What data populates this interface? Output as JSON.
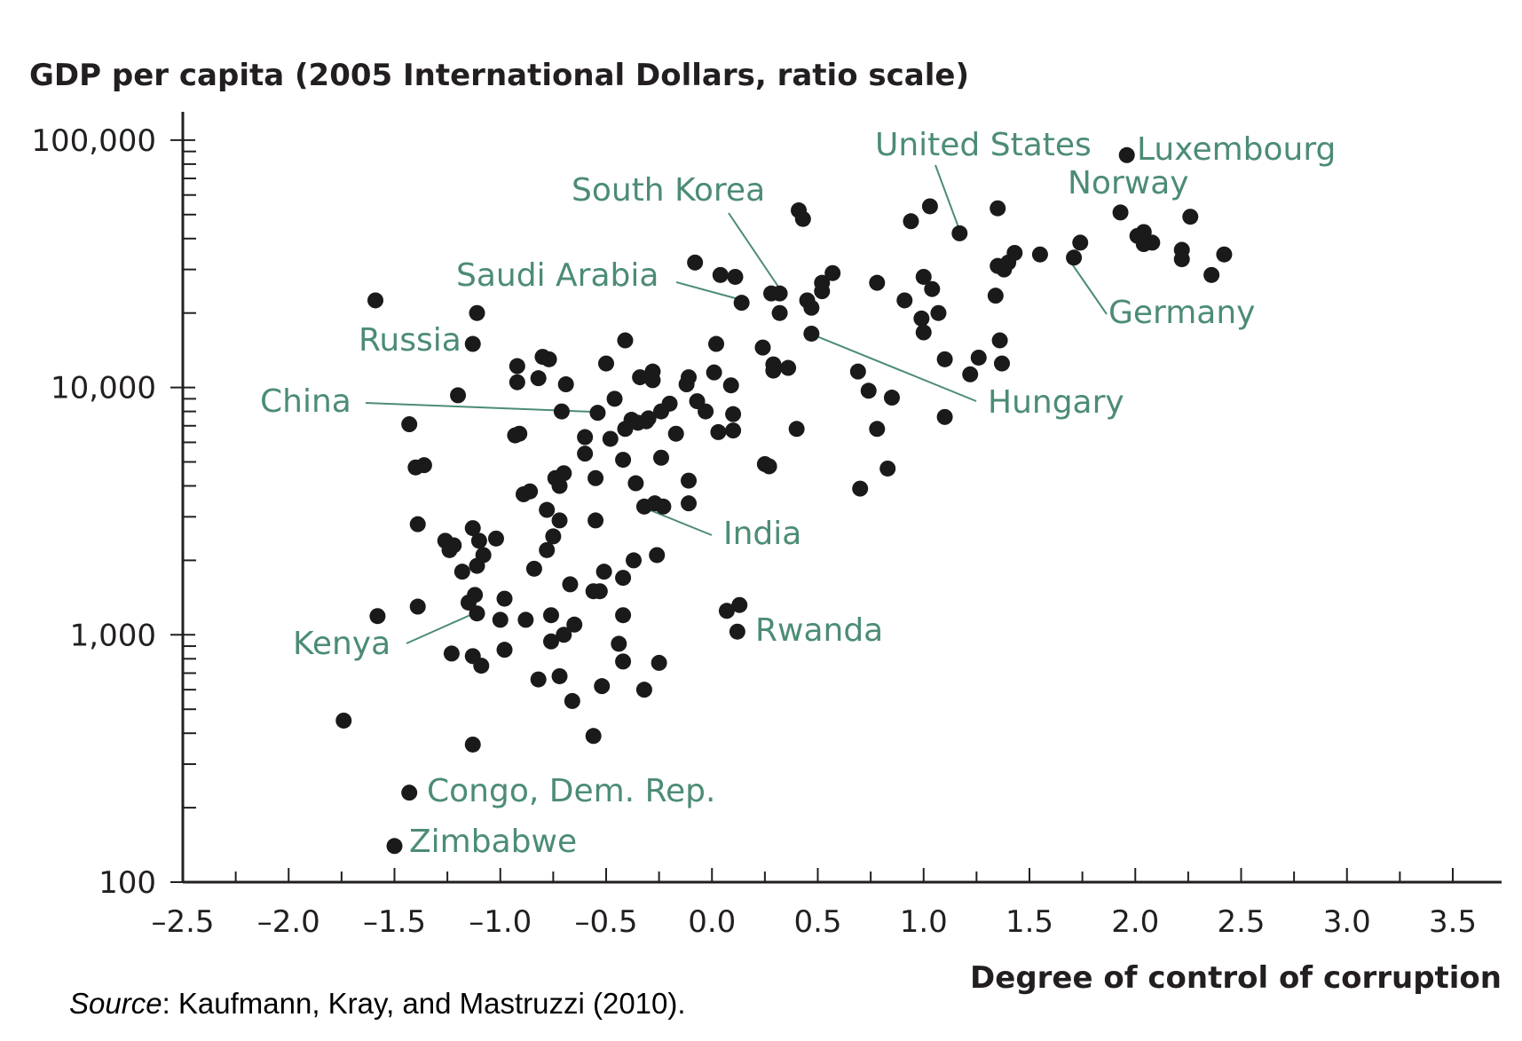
{
  "chart_data": {
    "type": "scatter",
    "title": "",
    "ylabel": "GDP per capita (2005 International Dollars, ratio scale)",
    "xlabel": "Degree of control of corruption",
    "y_scale": "log",
    "xlim": [
      -2.5,
      3.7
    ],
    "ylim": [
      100,
      100000
    ],
    "grid": false,
    "x_ticks": [
      -2.5,
      -2.0,
      -1.5,
      -1.0,
      -0.5,
      0.0,
      0.5,
      1.0,
      1.5,
      2.0,
      2.5,
      3.0,
      3.5
    ],
    "x_tick_labels": [
      "–2.5",
      "–2.0",
      "–1.5",
      "–1.0",
      "–0.5",
      "0.0",
      "0.5",
      "1.0",
      "1.5",
      "2.0",
      "2.5",
      "3.0",
      "3.5"
    ],
    "y_ticks": [
      100,
      1000,
      10000,
      100000
    ],
    "y_tick_labels": [
      "100",
      "1,000",
      "10,000",
      "100,000"
    ],
    "points": [
      [
        -1.59,
        22500
      ],
      [
        -1.11,
        20000
      ],
      [
        -1.13,
        15000
      ],
      [
        -1.2,
        9300
      ],
      [
        -1.43,
        7100
      ],
      [
        -1.4,
        4750
      ],
      [
        -1.36,
        4850
      ],
      [
        -1.39,
        2800
      ],
      [
        -1.26,
        2400
      ],
      [
        -1.24,
        2200
      ],
      [
        -1.22,
        2300
      ],
      [
        -1.13,
        2700
      ],
      [
        -1.1,
        2400
      ],
      [
        -1.08,
        2100
      ],
      [
        -1.11,
        1900
      ],
      [
        -1.18,
        1800
      ],
      [
        -1.02,
        2450
      ],
      [
        -0.98,
        1400
      ],
      [
        -1.15,
        1350
      ],
      [
        -1.12,
        1450
      ],
      [
        -1.11,
        1220
      ],
      [
        -1.0,
        1150
      ],
      [
        -0.88,
        1150
      ],
      [
        -1.58,
        1190
      ],
      [
        -1.39,
        1300
      ],
      [
        -1.23,
        840
      ],
      [
        -1.13,
        820
      ],
      [
        -1.09,
        750
      ],
      [
        -0.98,
        870
      ],
      [
        -0.82,
        660
      ],
      [
        -0.72,
        680
      ],
      [
        -0.66,
        540
      ],
      [
        -1.74,
        450
      ],
      [
        -1.13,
        360
      ],
      [
        -0.56,
        390
      ],
      [
        -0.92,
        12200
      ],
      [
        -0.92,
        10500
      ],
      [
        -0.82,
        10900
      ],
      [
        -0.8,
        13300
      ],
      [
        -0.77,
        13000
      ],
      [
        -0.69,
        10300
      ],
      [
        -0.71,
        8000
      ],
      [
        -0.93,
        6400
      ],
      [
        -0.91,
        6500
      ],
      [
        -0.89,
        3700
      ],
      [
        -0.86,
        3800
      ],
      [
        -0.78,
        3200
      ],
      [
        -0.74,
        4300
      ],
      [
        -0.72,
        4000
      ],
      [
        -0.7,
        4500
      ],
      [
        -0.72,
        2900
      ],
      [
        -0.78,
        2200
      ],
      [
        -0.75,
        2500
      ],
      [
        -0.84,
        1850
      ],
      [
        -0.67,
        1600
      ],
      [
        -0.56,
        1500
      ],
      [
        -0.53,
        1500
      ],
      [
        -0.51,
        1800
      ],
      [
        -0.76,
        1200
      ],
      [
        -0.76,
        940
      ],
      [
        -0.7,
        1000
      ],
      [
        -0.65,
        1100
      ],
      [
        -0.52,
        620
      ],
      [
        -0.42,
        780
      ],
      [
        -0.44,
        920
      ],
      [
        -0.32,
        600
      ],
      [
        -0.25,
        770
      ],
      [
        -0.5,
        12500
      ],
      [
        -0.41,
        15500
      ],
      [
        -0.34,
        11000
      ],
      [
        -0.28,
        11600
      ],
      [
        -0.28,
        10700
      ],
      [
        -0.46,
        9000
      ],
      [
        -0.54,
        7900
      ],
      [
        -0.41,
        6800
      ],
      [
        -0.38,
        7400
      ],
      [
        -0.35,
        7200
      ],
      [
        -0.3,
        7500
      ],
      [
        -0.31,
        7300
      ],
      [
        -0.2,
        8600
      ],
      [
        -0.24,
        8000
      ],
      [
        -0.17,
        6500
      ],
      [
        -0.6,
        6300
      ],
      [
        -0.6,
        5400
      ],
      [
        -0.48,
        6200
      ],
      [
        -0.42,
        5100
      ],
      [
        -0.55,
        4300
      ],
      [
        -0.36,
        4100
      ],
      [
        -0.24,
        5200
      ],
      [
        -0.11,
        4200
      ],
      [
        -0.55,
        2900
      ],
      [
        -0.32,
        3300
      ],
      [
        -0.27,
        3400
      ],
      [
        -0.23,
        3300
      ],
      [
        -0.11,
        3400
      ],
      [
        -0.37,
        2000
      ],
      [
        -0.26,
        2100
      ],
      [
        -0.42,
        1700
      ],
      [
        -0.42,
        1200
      ],
      [
        -0.11,
        11000
      ],
      [
        -0.12,
        10300
      ],
      [
        -0.07,
        8800
      ],
      [
        -0.03,
        8000
      ],
      [
        -0.08,
        32000
      ],
      [
        0.04,
        28500
      ],
      [
        0.11,
        28000
      ],
      [
        0.14,
        22000
      ],
      [
        0.28,
        24000
      ],
      [
        0.32,
        24000
      ],
      [
        0.32,
        20000
      ],
      [
        0.02,
        15000
      ],
      [
        0.01,
        11500
      ],
      [
        0.09,
        10200
      ],
      [
        0.1,
        7800
      ],
      [
        0.1,
        6700
      ],
      [
        0.03,
        6600
      ],
      [
        0.24,
        14500
      ],
      [
        0.29,
        12400
      ],
      [
        0.29,
        11700
      ],
      [
        0.36,
        12000
      ],
      [
        0.27,
        4800
      ],
      [
        0.25,
        4900
      ],
      [
        0.4,
        6800
      ],
      [
        0.41,
        52000
      ],
      [
        0.43,
        48000
      ],
      [
        0.45,
        22500
      ],
      [
        0.47,
        21000
      ],
      [
        0.52,
        24500
      ],
      [
        0.52,
        26500
      ],
      [
        0.57,
        29000
      ],
      [
        0.47,
        16500
      ],
      [
        0.07,
        1250
      ],
      [
        0.13,
        1320
      ],
      [
        0.12,
        1030
      ],
      [
        0.78,
        26500
      ],
      [
        0.69,
        11600
      ],
      [
        0.74,
        9700
      ],
      [
        0.78,
        6800
      ],
      [
        0.7,
        3900
      ],
      [
        0.83,
        4700
      ],
      [
        0.85,
        9100
      ],
      [
        0.94,
        47000
      ],
      [
        1.03,
        54000
      ],
      [
        1.17,
        42000
      ],
      [
        0.91,
        22500
      ],
      [
        0.99,
        19000
      ],
      [
        1.0,
        28000
      ],
      [
        1.04,
        25000
      ],
      [
        1.07,
        20000
      ],
      [
        1.0,
        16700
      ],
      [
        1.1,
        13000
      ],
      [
        1.26,
        13200
      ],
      [
        1.22,
        11300
      ],
      [
        1.1,
        7600
      ],
      [
        1.35,
        53000
      ],
      [
        1.35,
        31000
      ],
      [
        1.38,
        30000
      ],
      [
        1.4,
        32000
      ],
      [
        1.43,
        35000
      ],
      [
        1.55,
        34500
      ],
      [
        1.34,
        23500
      ],
      [
        1.36,
        15500
      ],
      [
        1.37,
        12500
      ],
      [
        1.71,
        33500
      ],
      [
        1.74,
        38500
      ],
      [
        1.96,
        87000
      ],
      [
        1.93,
        51000
      ],
      [
        2.01,
        41000
      ],
      [
        2.04,
        42500
      ],
      [
        2.04,
        38000
      ],
      [
        2.08,
        38500
      ],
      [
        2.22,
        36000
      ],
      [
        2.22,
        33000
      ],
      [
        2.26,
        49000
      ],
      [
        2.36,
        28500
      ],
      [
        2.42,
        34500
      ],
      [
        -1.43,
        230
      ],
      [
        -1.5,
        140
      ]
    ],
    "annotations": [
      {
        "text": "United States",
        "x": 1.17,
        "y": 42000
      },
      {
        "text": "Luxembourg",
        "x": 1.96,
        "y": 87000
      },
      {
        "text": "Norway",
        "x": 2.04,
        "y": 42500
      },
      {
        "text": "South Korea",
        "x": 0.32,
        "y": 24000
      },
      {
        "text": "Saudi Arabia",
        "x": 0.14,
        "y": 22000
      },
      {
        "text": "Russia",
        "x": -1.13,
        "y": 15000
      },
      {
        "text": "China",
        "x": -0.54,
        "y": 7900
      },
      {
        "text": "Germany",
        "x": 1.71,
        "y": 33500
      },
      {
        "text": "Hungary",
        "x": 0.47,
        "y": 16500
      },
      {
        "text": "India",
        "x": -0.32,
        "y": 3300
      },
      {
        "text": "Kenya",
        "x": -1.11,
        "y": 1220
      },
      {
        "text": "Rwanda",
        "x": 0.12,
        "y": 1030
      },
      {
        "text": "Congo, Dem. Rep.",
        "x": -1.43,
        "y": 230
      },
      {
        "text": "Zimbabwe",
        "x": -1.5,
        "y": 140
      }
    ]
  },
  "source": {
    "label": "Source",
    "text": ": Kaufmann, Kray, and Mastruzzi (2010)."
  }
}
